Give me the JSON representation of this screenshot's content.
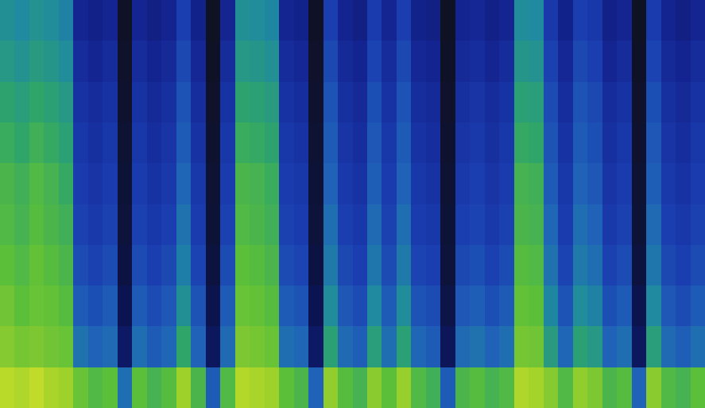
{
  "chart_data": {
    "type": "heatmap",
    "tick_labels": false,
    "zlim": [
      0,
      1
    ],
    "cells": [
      [
        0.95,
        0.93,
        0.96,
        0.92,
        0.9,
        0.82,
        0.78,
        0.8,
        0.55,
        0.8,
        0.76,
        0.79,
        0.9,
        0.77,
        0.5,
        0.78,
        0.94,
        0.92,
        0.9,
        0.8,
        0.77,
        0.52,
        0.88,
        0.79,
        0.76,
        0.87,
        0.8,
        0.89,
        0.78,
        0.75,
        0.5,
        0.77,
        0.79,
        0.76,
        0.78,
        0.93,
        0.91,
        0.86,
        0.78,
        0.88,
        0.85,
        0.77,
        0.79,
        0.52,
        0.87,
        0.78,
        0.76,
        0.8
      ],
      [
        0.86,
        0.84,
        0.85,
        0.83,
        0.82,
        0.56,
        0.52,
        0.54,
        0.2,
        0.55,
        0.5,
        0.53,
        0.72,
        0.52,
        0.18,
        0.54,
        0.85,
        0.84,
        0.82,
        0.55,
        0.53,
        0.2,
        0.7,
        0.54,
        0.51,
        0.69,
        0.55,
        0.7,
        0.53,
        0.5,
        0.17,
        0.54,
        0.56,
        0.52,
        0.55,
        0.84,
        0.83,
        0.68,
        0.53,
        0.7,
        0.67,
        0.52,
        0.55,
        0.18,
        0.69,
        0.54,
        0.51,
        0.55
      ],
      [
        0.83,
        0.8,
        0.82,
        0.81,
        0.79,
        0.5,
        0.47,
        0.5,
        0.15,
        0.5,
        0.46,
        0.49,
        0.64,
        0.48,
        0.14,
        0.5,
        0.82,
        0.81,
        0.79,
        0.5,
        0.48,
        0.15,
        0.63,
        0.49,
        0.46,
        0.62,
        0.5,
        0.63,
        0.48,
        0.46,
        0.13,
        0.49,
        0.51,
        0.47,
        0.5,
        0.81,
        0.8,
        0.61,
        0.48,
        0.63,
        0.6,
        0.47,
        0.5,
        0.14,
        0.62,
        0.49,
        0.46,
        0.5
      ],
      [
        0.8,
        0.78,
        0.81,
        0.79,
        0.77,
        0.46,
        0.43,
        0.46,
        0.12,
        0.46,
        0.42,
        0.45,
        0.59,
        0.44,
        0.11,
        0.46,
        0.8,
        0.79,
        0.77,
        0.46,
        0.44,
        0.12,
        0.58,
        0.45,
        0.42,
        0.57,
        0.46,
        0.58,
        0.44,
        0.42,
        0.1,
        0.45,
        0.47,
        0.43,
        0.46,
        0.79,
        0.78,
        0.56,
        0.44,
        0.58,
        0.55,
        0.43,
        0.46,
        0.11,
        0.57,
        0.45,
        0.42,
        0.46
      ],
      [
        0.78,
        0.76,
        0.79,
        0.77,
        0.75,
        0.43,
        0.4,
        0.43,
        0.1,
        0.43,
        0.39,
        0.42,
        0.56,
        0.41,
        0.09,
        0.43,
        0.78,
        0.77,
        0.75,
        0.43,
        0.41,
        0.1,
        0.55,
        0.42,
        0.39,
        0.54,
        0.43,
        0.55,
        0.41,
        0.39,
        0.09,
        0.42,
        0.44,
        0.4,
        0.43,
        0.77,
        0.76,
        0.53,
        0.41,
        0.55,
        0.52,
        0.4,
        0.43,
        0.09,
        0.54,
        0.42,
        0.39,
        0.43
      ],
      [
        0.77,
        0.75,
        0.78,
        0.76,
        0.73,
        0.41,
        0.38,
        0.41,
        0.09,
        0.41,
        0.37,
        0.4,
        0.53,
        0.39,
        0.08,
        0.41,
        0.77,
        0.76,
        0.74,
        0.41,
        0.39,
        0.09,
        0.52,
        0.4,
        0.37,
        0.51,
        0.41,
        0.52,
        0.39,
        0.37,
        0.08,
        0.4,
        0.42,
        0.38,
        0.41,
        0.76,
        0.75,
        0.5,
        0.39,
        0.52,
        0.49,
        0.38,
        0.41,
        0.08,
        0.51,
        0.4,
        0.37,
        0.41
      ],
      [
        0.74,
        0.72,
        0.75,
        0.73,
        0.7,
        0.39,
        0.36,
        0.39,
        0.08,
        0.39,
        0.35,
        0.38,
        0.5,
        0.37,
        0.07,
        0.39,
        0.74,
        0.73,
        0.71,
        0.39,
        0.37,
        0.08,
        0.5,
        0.38,
        0.35,
        0.49,
        0.39,
        0.5,
        0.37,
        0.35,
        0.07,
        0.38,
        0.4,
        0.36,
        0.39,
        0.73,
        0.72,
        0.48,
        0.37,
        0.5,
        0.47,
        0.36,
        0.39,
        0.07,
        0.49,
        0.38,
        0.35,
        0.39
      ],
      [
        0.71,
        0.69,
        0.72,
        0.7,
        0.67,
        0.37,
        0.34,
        0.37,
        0.07,
        0.37,
        0.33,
        0.36,
        0.48,
        0.35,
        0.06,
        0.37,
        0.71,
        0.7,
        0.68,
        0.37,
        0.35,
        0.07,
        0.48,
        0.36,
        0.33,
        0.47,
        0.37,
        0.48,
        0.35,
        0.33,
        0.06,
        0.36,
        0.38,
        0.34,
        0.37,
        0.7,
        0.69,
        0.46,
        0.35,
        0.48,
        0.45,
        0.34,
        0.37,
        0.06,
        0.47,
        0.36,
        0.33,
        0.37
      ],
      [
        0.67,
        0.65,
        0.68,
        0.66,
        0.63,
        0.34,
        0.31,
        0.34,
        0.06,
        0.34,
        0.3,
        0.33,
        0.45,
        0.32,
        0.05,
        0.34,
        0.67,
        0.66,
        0.64,
        0.34,
        0.32,
        0.06,
        0.45,
        0.33,
        0.3,
        0.44,
        0.34,
        0.45,
        0.32,
        0.3,
        0.05,
        0.33,
        0.35,
        0.31,
        0.34,
        0.66,
        0.65,
        0.43,
        0.32,
        0.45,
        0.42,
        0.31,
        0.34,
        0.05,
        0.44,
        0.33,
        0.3,
        0.34
      ],
      [
        0.64,
        0.62,
        0.65,
        0.63,
        0.6,
        0.31,
        0.28,
        0.31,
        0.05,
        0.31,
        0.27,
        0.3,
        0.42,
        0.29,
        0.04,
        0.31,
        0.64,
        0.63,
        0.61,
        0.31,
        0.29,
        0.05,
        0.42,
        0.3,
        0.27,
        0.41,
        0.31,
        0.42,
        0.29,
        0.27,
        0.04,
        0.3,
        0.32,
        0.28,
        0.31,
        0.63,
        0.62,
        0.4,
        0.29,
        0.42,
        0.39,
        0.28,
        0.31,
        0.04,
        0.41,
        0.3,
        0.27,
        0.31
      ]
    ]
  }
}
